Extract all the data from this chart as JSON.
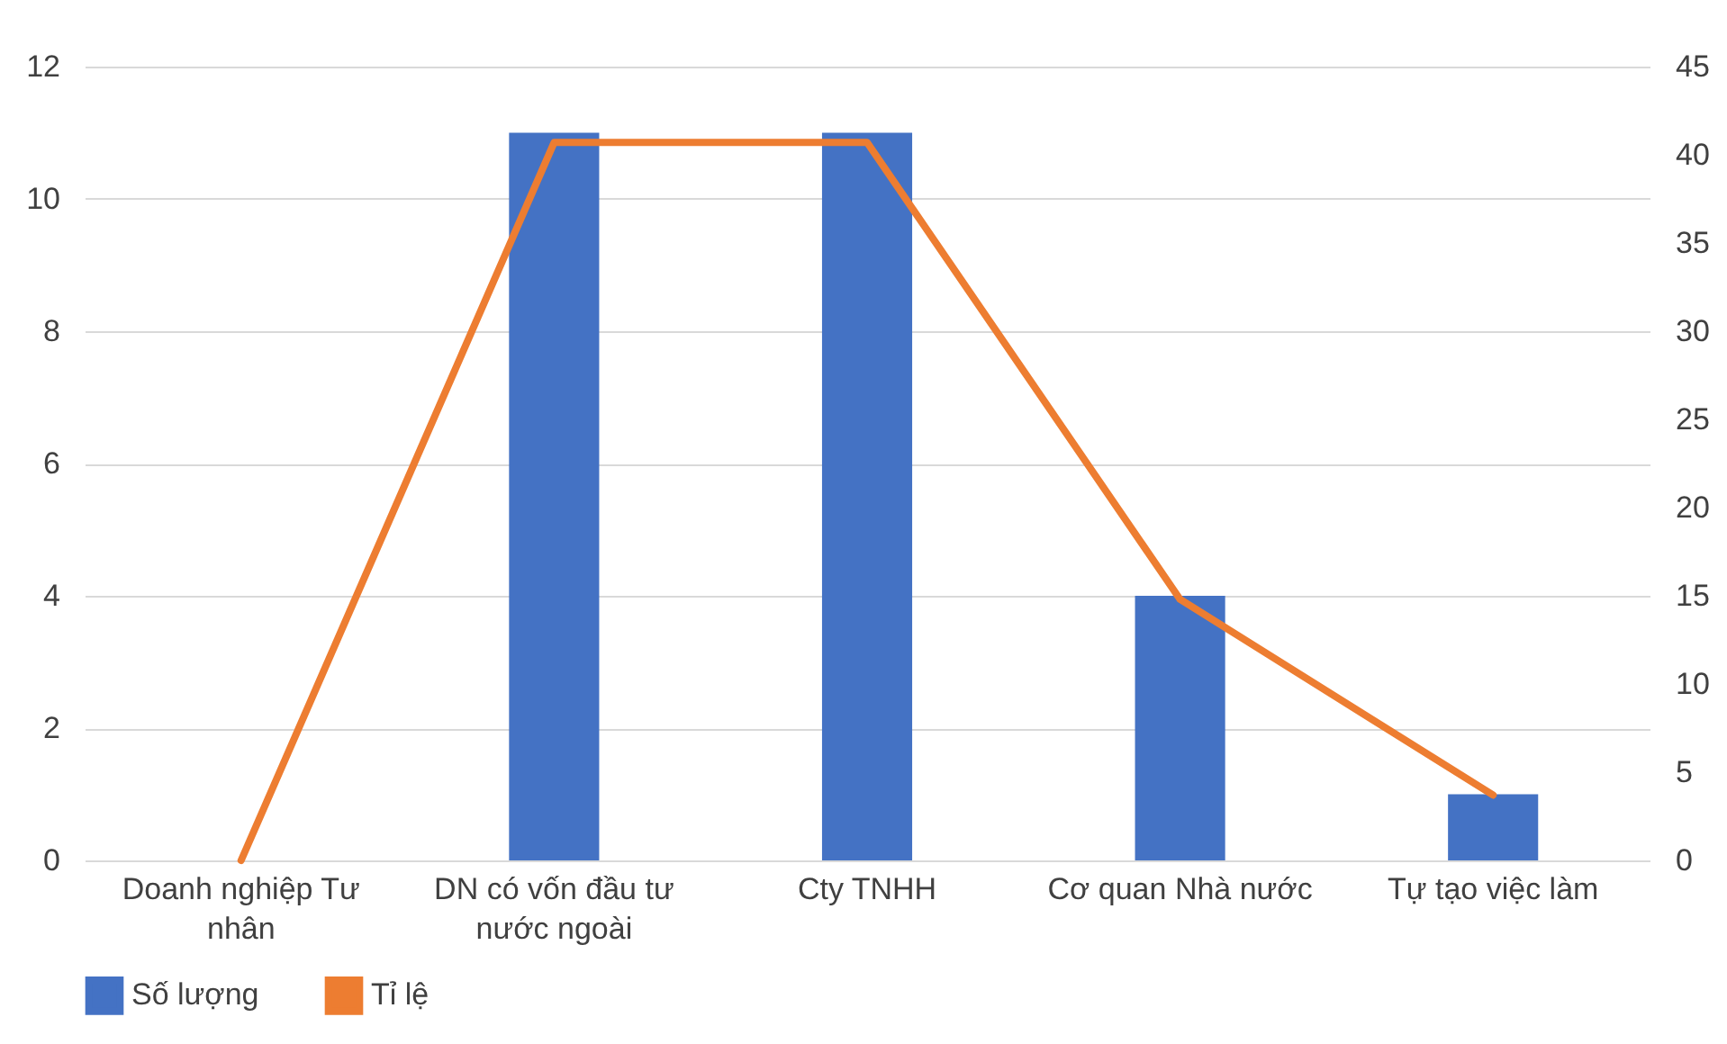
{
  "chart_data": {
    "type": "bar",
    "categories": [
      "Doanh nghiệp Tư nhân",
      "DN có vốn đầu tư nước ngoài",
      "Cty TNHH",
      "Cơ quan Nhà nước",
      "Tự tạo việc làm"
    ],
    "series": [
      {
        "name": "Số lượng",
        "color": "#4472c4",
        "values": [
          0,
          11,
          11,
          4,
          1
        ]
      },
      {
        "name": "Tỉ lệ",
        "type": "line",
        "axis": "y2",
        "color": "#ed7d31",
        "values": [
          0,
          40.7,
          40.7,
          14.8,
          3.7
        ]
      }
    ],
    "ylim": [
      0,
      12
    ],
    "yticks": [
      0,
      2,
      4,
      6,
      8,
      10,
      12
    ],
    "y2lim": [
      0,
      45
    ],
    "y2ticks": [
      0,
      5,
      10,
      15,
      20,
      25,
      30,
      35,
      40,
      45
    ],
    "grid": "y",
    "legend": "bottom",
    "marker": "none"
  }
}
